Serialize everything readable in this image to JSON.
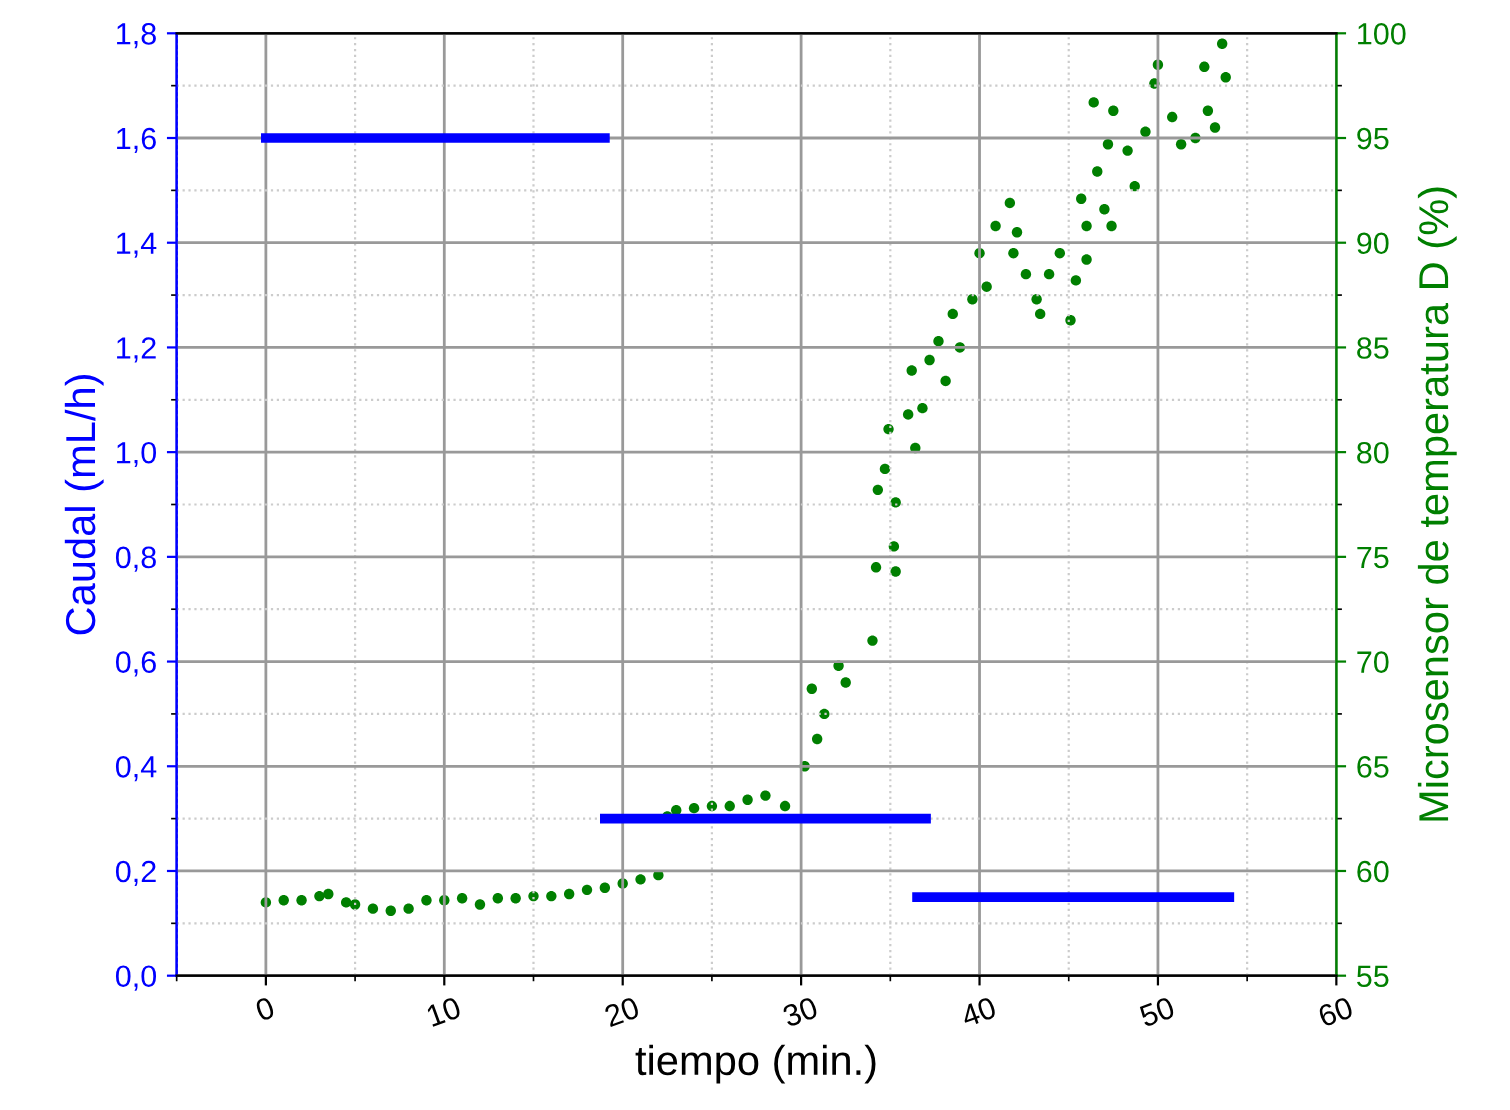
{
  "chart_data": {
    "type": "line",
    "xlabel": "tiempo (min.)",
    "ylabel": "Caudal (mL/h)",
    "y2label": "Microsensor de temperatura D (%)",
    "xlim": [
      -5,
      60
    ],
    "xticks": [
      0,
      10,
      20,
      30,
      40,
      50,
      60
    ],
    "ylim": [
      0,
      1.8
    ],
    "yticks": [
      {
        "value": 0,
        "label": "0,0"
      },
      {
        "value": 0.2,
        "label": "0,2"
      },
      {
        "value": 0.4,
        "label": "0,4"
      },
      {
        "value": 0.6,
        "label": "0,6"
      },
      {
        "value": 0.8,
        "label": "0,8"
      },
      {
        "value": 1.0,
        "label": "1,0"
      },
      {
        "value": 1.2,
        "label": "1,2"
      },
      {
        "value": 1.4,
        "label": "1,4"
      },
      {
        "value": 1.6,
        "label": "1,6"
      },
      {
        "value": 1.8,
        "label": "1,8"
      }
    ],
    "y2lim": [
      55,
      100
    ],
    "y2ticks": [
      55,
      60,
      65,
      70,
      75,
      80,
      85,
      90,
      95,
      100
    ],
    "grid": true,
    "legend": false,
    "series": [
      {
        "color": "#0000ff",
        "x": [
          0,
          19
        ],
        "values": [
          1.6,
          1.6
        ]
      },
      {
        "color": "#0000ff",
        "x": [
          19,
          37
        ],
        "values": [
          0.3,
          0.3
        ]
      },
      {
        "color": "#0000ff",
        "x": [
          36.5,
          54
        ],
        "values": [
          0.15,
          0.15
        ]
      },
      {
        "type": "scatter",
        "axis": "y2",
        "color": "#007f00",
        "marker": "circle",
        "x": [
          0,
          1,
          2,
          3,
          3.5,
          4.5,
          5,
          6,
          7,
          8,
          9,
          10,
          11,
          12,
          13,
          14,
          15,
          16,
          17,
          18,
          19,
          20,
          21,
          22,
          22.5,
          23,
          24,
          25,
          26,
          27,
          28,
          29.1,
          30.2,
          30.9,
          31.3,
          30.6,
          32.1,
          32.5,
          34.0,
          34.2,
          35.3,
          35.2,
          35.3,
          34.3,
          34.7,
          34.9,
          36.4,
          36.0,
          36.8,
          36.2,
          37.2,
          38.1,
          37.7,
          38.5,
          38.9,
          39.6,
          40.0,
          40.4,
          40.9,
          41.7,
          42.1,
          41.9,
          42.6,
          43.2,
          43.4,
          43.9,
          44.5,
          45.1,
          45.4,
          46.0,
          46.0,
          45.7,
          47.0,
          46.6,
          47.4,
          47.2,
          48.3,
          48.7,
          47.5,
          46.4,
          49.3,
          49.8,
          50.0,
          50.8,
          51.3,
          52.1,
          52.8,
          52.6,
          53.6,
          53.8,
          53.2
        ],
        "values": [
          58.5,
          58.6,
          58.6,
          58.8,
          58.9,
          58.5,
          58.4,
          58.2,
          58.1,
          58.2,
          58.6,
          58.6,
          58.7,
          58.4,
          58.7,
          58.7,
          58.8,
          58.8,
          58.9,
          59.1,
          59.2,
          59.4,
          59.6,
          59.8,
          62.6,
          62.9,
          63.0,
          63.1,
          63.1,
          63.4,
          63.6,
          63.1,
          65.0,
          66.3,
          67.5,
          68.7,
          69.8,
          69.0,
          71.0,
          74.5,
          74.3,
          75.5,
          77.6,
          78.2,
          79.2,
          81.1,
          80.2,
          81.8,
          82.1,
          83.9,
          84.4,
          83.4,
          85.3,
          86.6,
          85.0,
          87.3,
          89.5,
          87.9,
          90.8,
          91.9,
          90.5,
          89.5,
          88.5,
          87.3,
          86.6,
          88.5,
          89.5,
          86.3,
          88.2,
          89.2,
          90.8,
          92.1,
          91.6,
          93.4,
          90.8,
          94.7,
          94.4,
          92.7,
          96.3,
          96.7,
          95.3,
          97.6,
          98.5,
          96.0,
          94.7,
          95.0,
          96.3,
          98.4,
          99.5,
          97.9,
          95.5
        ]
      }
    ]
  }
}
